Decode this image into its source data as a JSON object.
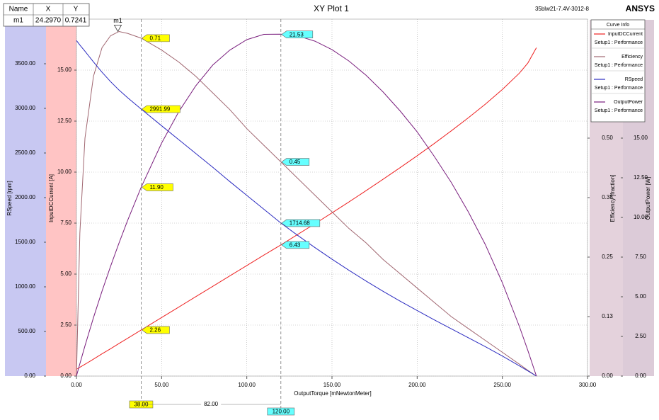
{
  "chart_data": {
    "type": "line",
    "title": "XY Plot 1",
    "design_name": "35blw21-7.4V-3012-8",
    "brand": "ANSYS",
    "xlabel": "OutputTorque [mNewtonMeter]",
    "xlim": [
      0,
      300
    ],
    "xticks": [
      {
        "value": 0,
        "label": "0.00"
      },
      {
        "value": 50,
        "label": "50.00"
      },
      {
        "value": 100,
        "label": "100.00"
      },
      {
        "value": 150,
        "label": "150.00"
      },
      {
        "value": 200,
        "label": "200.00"
      },
      {
        "value": 250,
        "label": "250.00"
      },
      {
        "value": 300,
        "label": "300.00"
      }
    ],
    "ylabel": "InputDCCurrent [A]",
    "ylim": [
      0,
      17.5
    ],
    "yticks": [
      {
        "value": 0,
        "label": "0.00"
      },
      {
        "value": 2.5,
        "label": "2.50"
      },
      {
        "value": 5,
        "label": "5.00"
      },
      {
        "value": 7.5,
        "label": "7.50"
      },
      {
        "value": 10,
        "label": "10.00"
      },
      {
        "value": 12.5,
        "label": "12.50"
      },
      {
        "value": 15,
        "label": "15.00"
      }
    ],
    "y2label": "RSpeed [rpm]",
    "y2lim": [
      0,
      4000
    ],
    "y2ticks": [
      {
        "value": 0,
        "label": "0.00"
      },
      {
        "value": 500,
        "label": "500.00"
      },
      {
        "value": 1000,
        "label": "1000.00"
      },
      {
        "value": 1500,
        "label": "1500.00"
      },
      {
        "value": 2000,
        "label": "2000.00"
      },
      {
        "value": 2500,
        "label": "2500.00"
      },
      {
        "value": 3000,
        "label": "3000.00"
      },
      {
        "value": 3500,
        "label": "3500.00"
      }
    ],
    "y3label": "Efficiency [fraction]",
    "y3lim": [
      0,
      0.75
    ],
    "y3ticks": [
      {
        "value": 0,
        "label": "0.00"
      },
      {
        "value": 0.125,
        "label": "0.13"
      },
      {
        "value": 0.25,
        "label": "0.25"
      },
      {
        "value": 0.375,
        "label": "0.38"
      },
      {
        "value": 0.5,
        "label": "0.50"
      }
    ],
    "y4label": "OutputPower [W]",
    "y4lim": [
      0,
      22.5
    ],
    "y4ticks": [
      {
        "value": 0,
        "label": "0.00"
      },
      {
        "value": 2.5,
        "label": "2.50"
      },
      {
        "value": 5,
        "label": "5.00"
      },
      {
        "value": 7.5,
        "label": "7.50"
      },
      {
        "value": 10,
        "label": "10.00"
      },
      {
        "value": 12.5,
        "label": "12.50"
      },
      {
        "value": 15,
        "label": "15.00"
      }
    ],
    "grid": true,
    "legend_title": "Curve Info",
    "legend_subtitle": "Setup1 : Performance",
    "x": [
      0,
      2,
      5,
      10,
      15,
      20,
      25,
      30,
      38,
      50,
      60,
      70,
      80,
      90,
      100,
      110,
      120,
      130,
      140,
      150,
      160,
      170,
      180,
      190,
      200,
      210,
      220,
      230,
      240,
      250,
      260,
      265,
      270
    ],
    "series": [
      {
        "name": "InputDCCurrent",
        "color": "#ee2222",
        "axis": "y",
        "values": [
          0.33,
          0.43,
          0.58,
          0.83,
          1.09,
          1.34,
          1.6,
          1.85,
          2.26,
          2.87,
          3.38,
          3.89,
          4.4,
          4.91,
          5.42,
          5.93,
          6.43,
          6.95,
          7.47,
          8.0,
          8.54,
          9.09,
          9.65,
          10.22,
          10.8,
          11.4,
          12.02,
          12.66,
          13.33,
          14.05,
          14.85,
          15.35,
          16.1
        ]
      },
      {
        "name": "Efficiency",
        "color": "#a06670",
        "axis": "y3",
        "values": [
          0,
          0.3,
          0.5,
          0.63,
          0.69,
          0.715,
          0.724,
          0.72,
          0.71,
          0.685,
          0.66,
          0.63,
          0.595,
          0.56,
          0.52,
          0.485,
          0.45,
          0.415,
          0.38,
          0.345,
          0.31,
          0.28,
          0.245,
          0.215,
          0.185,
          0.155,
          0.125,
          0.1,
          0.075,
          0.05,
          0.025,
          0.012,
          0
        ]
      },
      {
        "name": "RSpeed",
        "color": "#2a2ac0",
        "axis": "y2",
        "values": [
          3760,
          3710,
          3640,
          3520,
          3405,
          3300,
          3205,
          3120,
          2992,
          2805,
          2650,
          2495,
          2340,
          2180,
          2025,
          1870,
          1715,
          1575,
          1440,
          1310,
          1185,
          1065,
          950,
          840,
          735,
          630,
          530,
          430,
          330,
          225,
          115,
          58,
          0
        ]
      },
      {
        "name": "OutputPower",
        "color": "#7a1f7e",
        "axis": "y4",
        "values": [
          0,
          0.777,
          1.906,
          3.686,
          5.349,
          6.912,
          8.391,
          9.802,
          11.906,
          14.687,
          16.65,
          18.289,
          19.603,
          20.546,
          21.206,
          21.541,
          21.552,
          21.442,
          21.112,
          20.578,
          19.855,
          18.96,
          17.907,
          16.713,
          15.394,
          13.855,
          12.21,
          10.357,
          8.294,
          5.891,
          3.131,
          1.61,
          0
        ]
      }
    ],
    "markers": [
      {
        "x": 38,
        "x_label": "38.00",
        "color": "#ffff00",
        "values": [
          2.26,
          0.71,
          2991.99,
          11.9
        ],
        "value_labels": [
          "2.26",
          "0.71",
          "2991.99",
          "11.90"
        ]
      },
      {
        "x": 120,
        "x_label": "120.00",
        "color": "#66ffff",
        "values": [
          6.43,
          0.45,
          1714.68,
          21.53
        ],
        "value_labels": [
          "6.43",
          "0.45",
          "1714.68",
          "21.53"
        ]
      }
    ],
    "delta": 82,
    "delta_label": "82.00",
    "point_marker": {
      "name": "m1",
      "axis": "y3",
      "x": 24.297,
      "y": 0.7241,
      "x_label": "24.2970",
      "y_label": "0.7241"
    },
    "marker_table_headers": [
      "Name",
      "X",
      "Y"
    ]
  }
}
